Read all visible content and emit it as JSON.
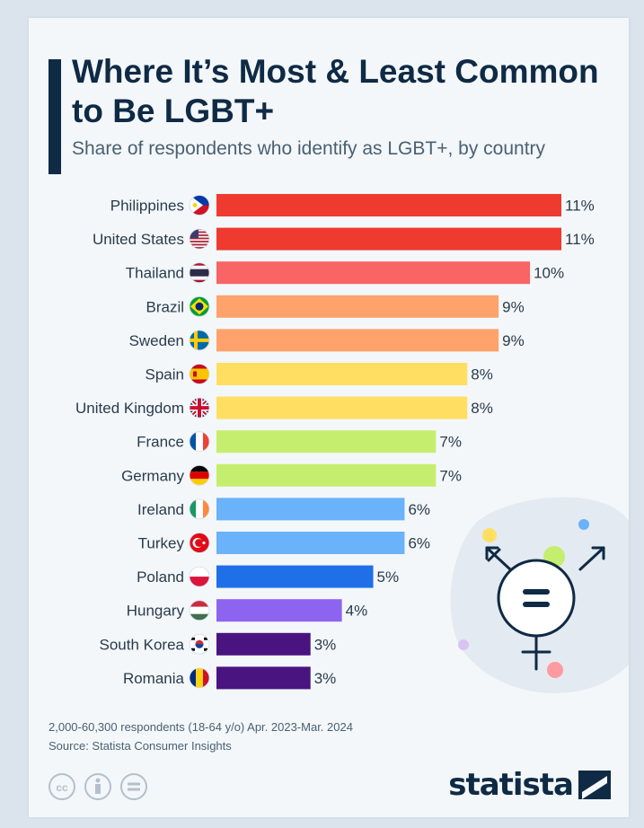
{
  "title": "Where It’s Most & Least Common to Be LGBT+",
  "subtitle": "Share of respondents who identify as LGBT+, by country",
  "footnote_sample": "2,000-60,300 respondents (18-64 y/o) Apr. 2023-Mar. 2024",
  "footnote_source": "Source: Statista Consumer Insights",
  "brand": "statista",
  "chart_data": {
    "type": "bar",
    "orientation": "horizontal",
    "categories": [
      "Philippines",
      "United States",
      "Thailand",
      "Brazil",
      "Sweden",
      "Spain",
      "United Kingdom",
      "France",
      "Germany",
      "Ireland",
      "Turkey",
      "Poland",
      "Hungary",
      "South Korea",
      "Romania"
    ],
    "values": [
      11,
      11,
      10,
      9,
      9,
      8,
      8,
      7,
      7,
      6,
      6,
      5,
      4,
      3,
      3
    ],
    "value_labels": [
      "11%",
      "11%",
      "10%",
      "9%",
      "9%",
      "8%",
      "8%",
      "7%",
      "7%",
      "6%",
      "6%",
      "5%",
      "4%",
      "3%",
      "3%"
    ],
    "bar_colors": [
      "#ee3a2f",
      "#ee3a2f",
      "#f96464",
      "#ffa26b",
      "#ffa26b",
      "#ffde62",
      "#ffde62",
      "#c6ee6e",
      "#c6ee6e",
      "#6ab2f9",
      "#6ab2f9",
      "#1f6fe8",
      "#8c64f0",
      "#4a1480",
      "#4a1480"
    ],
    "flags": [
      "philippines-flag-icon",
      "united-states-flag-icon",
      "thailand-flag-icon",
      "brazil-flag-icon",
      "sweden-flag-icon",
      "spain-flag-icon",
      "united-kingdom-flag-icon",
      "france-flag-icon",
      "germany-flag-icon",
      "ireland-flag-icon",
      "turkey-flag-icon",
      "poland-flag-icon",
      "hungary-flag-icon",
      "south-korea-flag-icon",
      "romania-flag-icon"
    ],
    "xlim": [
      0,
      11
    ],
    "unit": "%",
    "grid": false,
    "legend": "none"
  },
  "colors": {
    "navy": "#0f2a44",
    "text": "#4a6072"
  },
  "icons": {
    "illustration": "transgender-symbol-icon",
    "license": [
      "creative-commons-icon",
      "attribution-icon",
      "no-derivatives-icon"
    ]
  }
}
